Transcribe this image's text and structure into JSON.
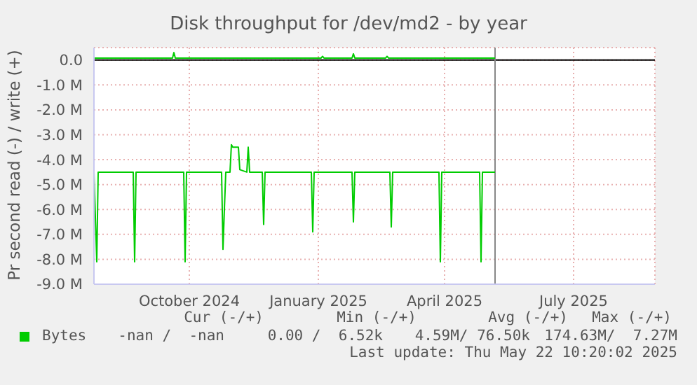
{
  "chart_data": {
    "type": "line",
    "title": "Disk throughput for /dev/md2 - by year",
    "ylabel": "Pr second read (-) / write (+)",
    "xlim": [
      "2024-08-09",
      "2025-09-13"
    ],
    "xticks": [
      {
        "value": "2024-10-16",
        "label": "October 2024"
      },
      {
        "value": "2025-01-16",
        "label": "January 2025"
      },
      {
        "value": "2025-04-16",
        "label": "April 2025"
      },
      {
        "value": "2025-07-17",
        "label": "July 2025"
      }
    ],
    "ylim": [
      -9,
      0.5
    ],
    "yticks": [
      {
        "value": 0,
        "label": "0.0"
      },
      {
        "value": -1,
        "label": "-1.0 M"
      },
      {
        "value": -2,
        "label": "-2.0 M"
      },
      {
        "value": -3,
        "label": "-3.0 M"
      },
      {
        "value": -4,
        "label": "-4.0 M"
      },
      {
        "value": -5,
        "label": "-5.0 M"
      },
      {
        "value": -6,
        "label": "-6.0 M"
      },
      {
        "value": -7,
        "label": "-7.0 M"
      },
      {
        "value": -8,
        "label": "-8.0 M"
      },
      {
        "value": -9,
        "label": "-9.0 M"
      }
    ],
    "grid": true,
    "legend": "bottom",
    "marker": "none",
    "line_style": "solid",
    "ref_lines": [
      {
        "axis": "y",
        "value": 0,
        "color": "#000000"
      },
      {
        "axis": "x",
        "value": "2025-05-22",
        "color": "#888888"
      }
    ],
    "series": [
      {
        "name": "Bytes",
        "color": "#00cc00",
        "x": [
          "2024-08-09",
          "2024-08-11",
          "2024-08-12",
          "2024-09-06",
          "2024-09-07",
          "2024-09-08",
          "2024-10-12",
          "2024-10-13",
          "2024-10-14",
          "2024-11-08",
          "2024-11-09",
          "2024-11-10",
          "2024-11-11",
          "2024-11-12",
          "2024-11-14",
          "2024-11-15",
          "2024-11-16",
          "2024-11-17",
          "2024-11-20",
          "2024-11-21",
          "2024-11-26",
          "2024-11-27",
          "2024-11-28",
          "2024-11-29",
          "2024-12-07",
          "2024-12-08",
          "2024-12-09",
          "2025-01-11",
          "2025-01-12",
          "2025-01-13",
          "2025-02-09",
          "2025-02-10",
          "2025-02-11",
          "2025-03-08",
          "2025-03-09",
          "2025-03-10",
          "2025-04-12",
          "2025-04-13",
          "2025-04-14",
          "2025-05-11",
          "2025-05-12",
          "2025-05-13",
          "2025-05-22"
        ],
        "values": [
          -4.5,
          -8.1,
          -4.5,
          -4.5,
          -8.1,
          -4.5,
          -4.5,
          -8.1,
          -4.5,
          -4.5,
          -7.6,
          -6.0,
          -4.5,
          -4.5,
          -4.5,
          -3.4,
          -3.5,
          -3.5,
          -3.5,
          -4.4,
          -4.5,
          -3.5,
          -4.5,
          -4.5,
          -4.5,
          -6.6,
          -4.5,
          -4.5,
          -6.9,
          -4.5,
          -4.5,
          -6.5,
          -4.5,
          -4.5,
          -6.7,
          -4.5,
          -4.5,
          -8.1,
          -4.5,
          -4.5,
          -8.1,
          -4.5,
          -4.5
        ]
      },
      {
        "color": "#00cc00",
        "x": [
          "2024-08-09",
          "2024-10-04",
          "2024-10-05",
          "2024-10-06",
          "2025-01-18",
          "2025-01-19",
          "2025-01-20",
          "2025-02-09",
          "2025-02-10",
          "2025-02-11",
          "2025-03-05",
          "2025-03-06",
          "2025-03-07",
          "2025-05-22"
        ],
        "values": [
          0.08,
          0.08,
          0.3,
          0.08,
          0.08,
          0.15,
          0.08,
          0.08,
          0.25,
          0.08,
          0.08,
          0.15,
          0.08,
          0.08
        ]
      }
    ],
    "annotations": [
      "Cur (-/+)",
      "Min (-/+)",
      "Avg (-/+)",
      "Max (-/+)",
      "-nan /  -nan",
      "0.00 /  6.52k",
      "4.59M/ 76.50k",
      "174.63M/  7.27M",
      "Last update: Thu May 22 10:20:02 2025"
    ]
  }
}
